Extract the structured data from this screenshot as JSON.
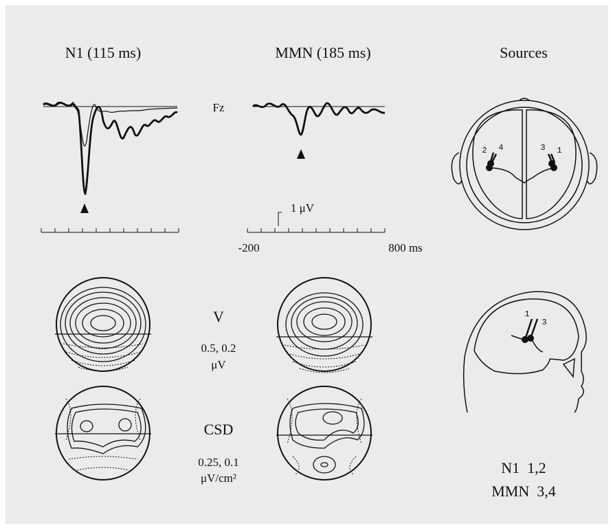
{
  "columns": {
    "n1": "N1 (115 ms)",
    "mmn": "MMN (185 ms)",
    "sources": "Sources"
  },
  "waveform": {
    "channel": "Fz",
    "amplitude_scale": "1 μV",
    "time_start": "-200",
    "time_end": "800 ms"
  },
  "maps": {
    "voltage": {
      "label": "V",
      "steps": "0.5, 0.2",
      "unit": "μV"
    },
    "csd": {
      "label": "CSD",
      "steps": "0.25, 0.1",
      "unit": "μV/cm²"
    }
  },
  "sources": {
    "top_labels": [
      "2",
      "4",
      "3",
      "1"
    ],
    "side_labels": [
      "1",
      "3"
    ],
    "legend": [
      "N1  1,2",
      "MMN  3,4"
    ]
  }
}
